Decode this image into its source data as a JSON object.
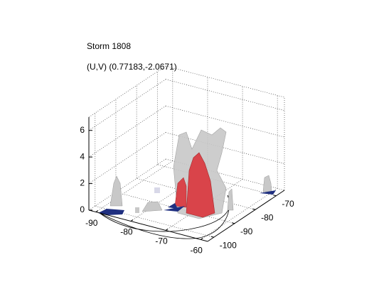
{
  "chart_data": {
    "type": "isosurface3d",
    "title": "Storm 1808",
    "subtitle": "(U,V) (0.77183,-2.0671)",
    "xlim": [
      -92,
      -58
    ],
    "ylim": [
      -103,
      -66
    ],
    "zlim": [
      0,
      7
    ],
    "xticks": [
      -90,
      -80,
      -70,
      -60
    ],
    "yticks": [
      -100,
      -90,
      -80,
      -70
    ],
    "zticks": [
      0,
      2,
      4,
      6
    ],
    "grid": true
  }
}
